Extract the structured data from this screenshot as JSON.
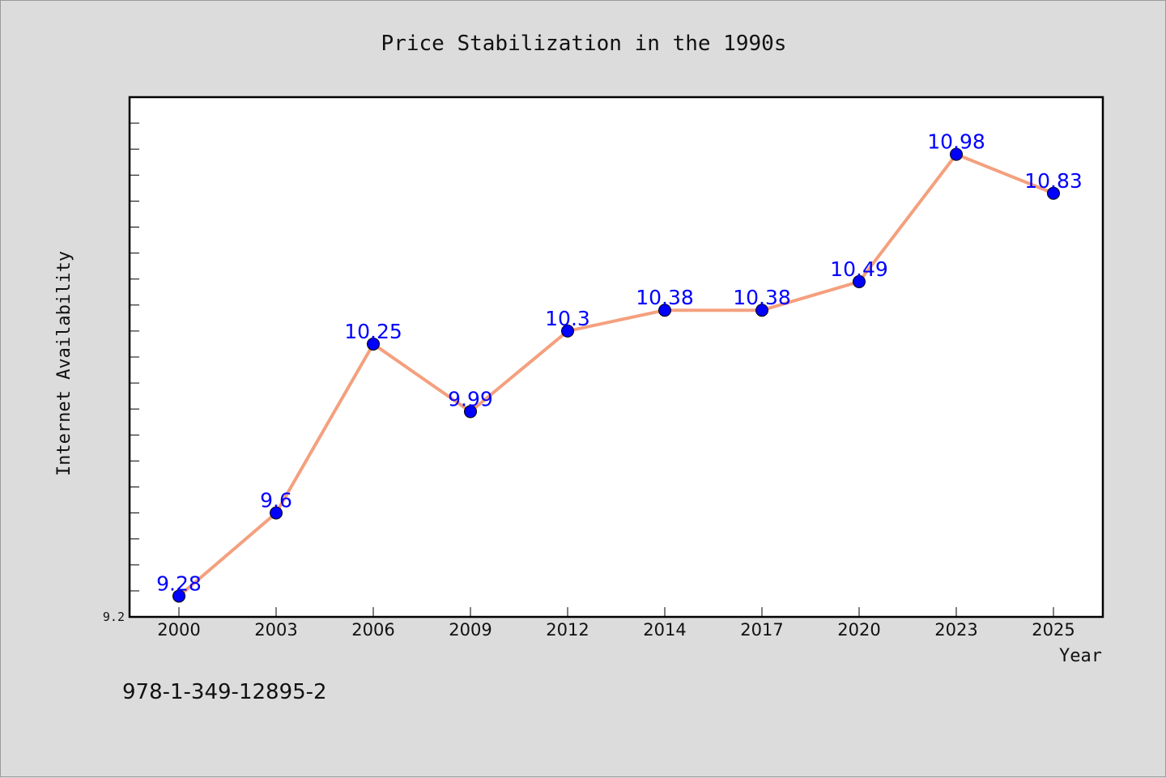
{
  "chart_data": {
    "type": "line",
    "title": "Price Stabilization in the 1990s",
    "xlabel": "Year",
    "ylabel": "Internet Availability",
    "categories": [
      "2000",
      "2003",
      "2006",
      "2009",
      "2012",
      "2014",
      "2017",
      "2020",
      "2023",
      "2025"
    ],
    "series": [
      {
        "values": [
          9.28,
          9.6,
          10.25,
          9.99,
          10.3,
          10.38,
          10.38,
          10.49,
          10.98,
          10.83
        ],
        "labels": [
          "9.28",
          "9.6",
          "10.25",
          "9.99",
          "10.3",
          "10.38",
          "10.38",
          "10.49",
          "10.98",
          "10.83"
        ]
      }
    ],
    "ylim": [
      9.2,
      11.2
    ],
    "y_tick_labels": [
      "9.2"
    ],
    "grid": false,
    "colors": {
      "line": "#f4a07e",
      "marker": "#0000ff",
      "data_label": "#0000ff",
      "plot_bg": "#ffffff",
      "page_bg": "#dcdcdc"
    }
  },
  "footer": {
    "isbn": "978-1-349-12895-2"
  }
}
